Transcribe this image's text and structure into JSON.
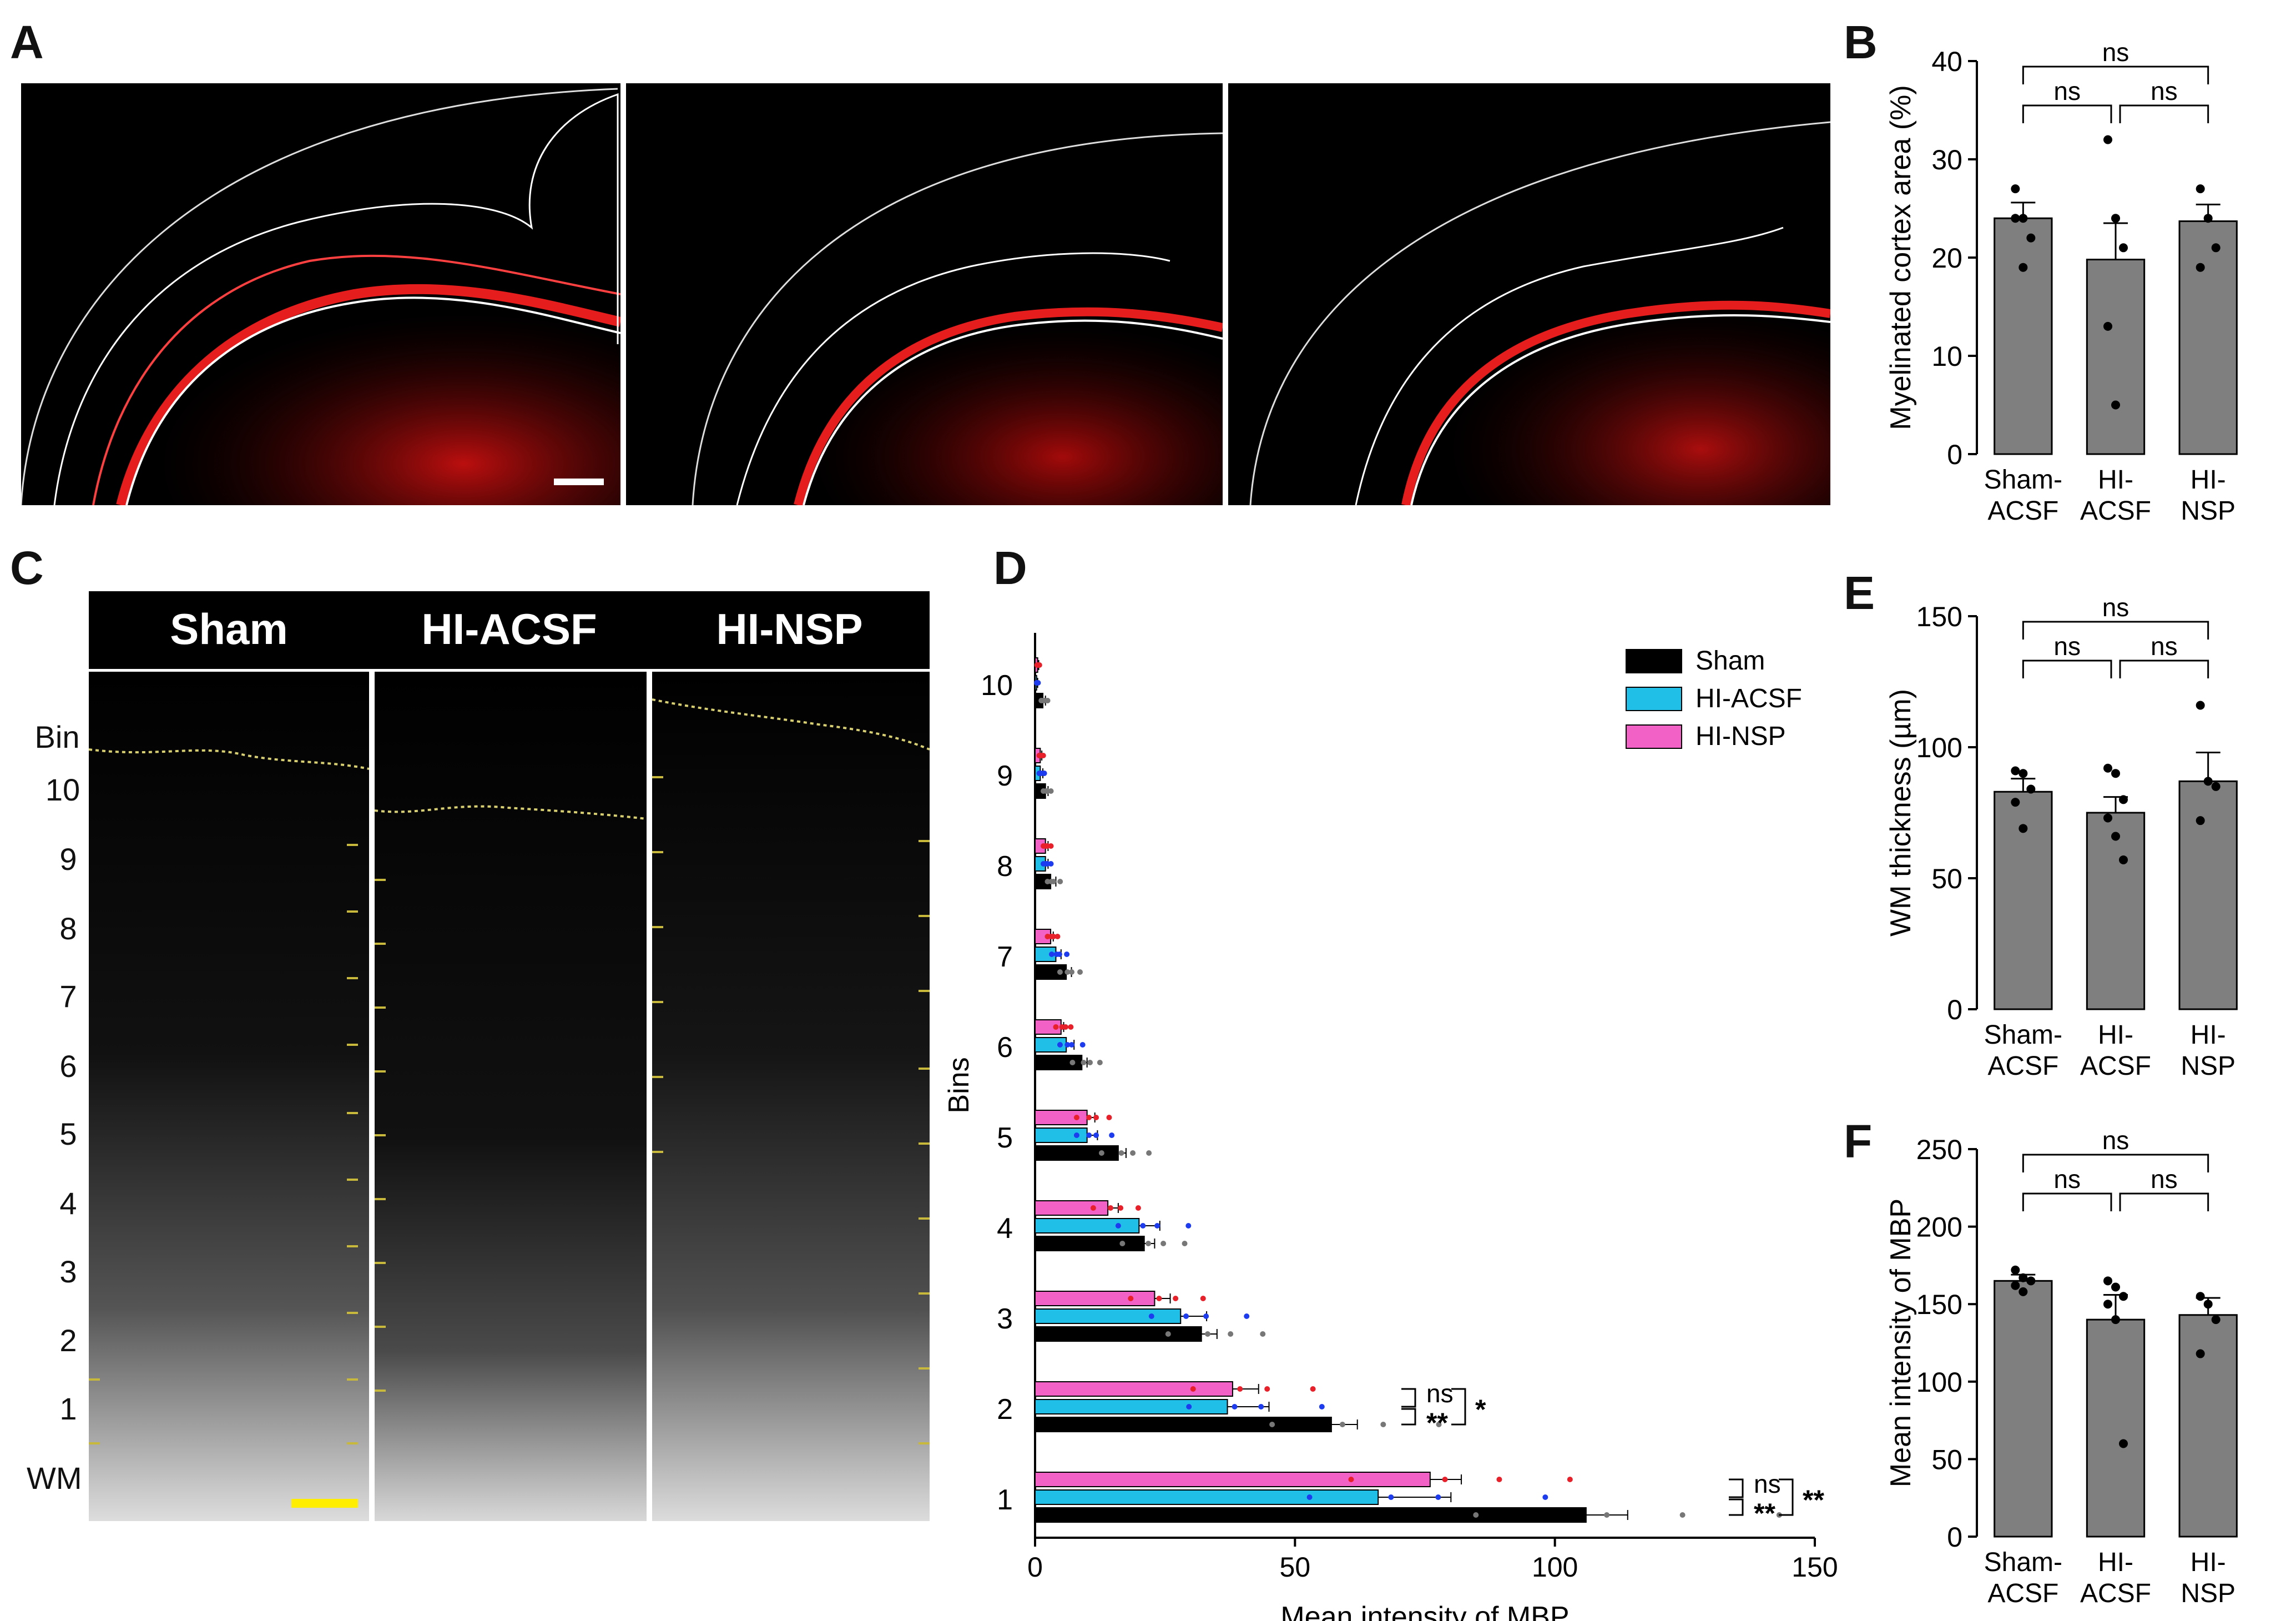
{
  "panels": {
    "A": {
      "letter": "A"
    },
    "B": {
      "letter": "B"
    },
    "C": {
      "letter": "C",
      "headers": [
        "Sham",
        "HI-ACSF",
        "HI-NSP"
      ],
      "bin_labels": [
        "Bin",
        "10",
        "9",
        "8",
        "7",
        "6",
        "5",
        "4",
        "3",
        "2",
        "1",
        "WM"
      ]
    },
    "D": {
      "letter": "D"
    },
    "E": {
      "letter": "E"
    },
    "F": {
      "letter": "F"
    }
  },
  "colors": {
    "bar_gray": "#7f7f7f",
    "sham": "#000000",
    "hi_acsf": "#1fbfe8",
    "hi_nsp": "#f261c6",
    "dot_red": "#e8202a",
    "dot_blue": "#1d3cf0",
    "micro_red": "#e01010"
  },
  "chart_data": [
    {
      "id": "B",
      "type": "bar",
      "categories": [
        "Sham-\nACSF",
        "HI-\nACSF",
        "HI-\nNSP"
      ],
      "category_lines": [
        [
          "Sham-",
          "ACSF"
        ],
        [
          "HI-",
          "ACSF"
        ],
        [
          "HI-",
          "NSP"
        ]
      ],
      "values": [
        24.0,
        19.8,
        23.7
      ],
      "errors": [
        1.6,
        3.7,
        1.7
      ],
      "points": [
        [
          27,
          24,
          22,
          24,
          19
        ],
        [
          32,
          24,
          21,
          13,
          5
        ],
        [
          27,
          24,
          21,
          19
        ]
      ],
      "ylabel": "Myelinated cortex area (%)",
      "ylim": [
        0,
        40
      ],
      "yticks": [
        0,
        10,
        20,
        30,
        40
      ],
      "significance": [
        {
          "a": 0,
          "b": 1,
          "label": "ns"
        },
        {
          "a": 1,
          "b": 2,
          "label": "ns"
        },
        {
          "a": 0,
          "b": 2,
          "label": "ns"
        }
      ]
    },
    {
      "id": "D",
      "type": "bar",
      "orientation": "horizontal",
      "categories": [
        "1",
        "2",
        "3",
        "4",
        "5",
        "6",
        "7",
        "8",
        "9",
        "10"
      ],
      "series": [
        {
          "name": "Sham",
          "values": [
            106,
            57,
            32,
            21,
            16,
            9,
            6,
            3,
            2,
            1.5
          ],
          "errors": [
            8,
            5,
            3,
            2,
            1.5,
            1,
            1,
            1,
            0.5,
            0.5
          ]
        },
        {
          "name": "HI-ACSF",
          "values": [
            66,
            37,
            28,
            20,
            10,
            6,
            4,
            2,
            1,
            0.3
          ],
          "errors": [
            14,
            8,
            5,
            4,
            2,
            1.5,
            1,
            0.5,
            0.5,
            0.2
          ]
        },
        {
          "name": "HI-NSP",
          "values": [
            76,
            38,
            23,
            14,
            10,
            5,
            3,
            2,
            1,
            0.5
          ],
          "errors": [
            6,
            5,
            3,
            2,
            1.5,
            0.5,
            0.5,
            0.5,
            0.3,
            0.2
          ]
        }
      ],
      "xlabel": "Mean intensity of MBP",
      "ylabel": "Bins",
      "xlim": [
        0,
        150
      ],
      "xticks": [
        0,
        50,
        100,
        150
      ],
      "significance": [
        {
          "bin": "2",
          "inner_top": "ns",
          "inner_bottom": "**",
          "outer": "*"
        },
        {
          "bin": "1",
          "inner_top": "ns",
          "inner_bottom": "**",
          "outer": "**"
        }
      ]
    },
    {
      "id": "E",
      "type": "bar",
      "categories": [
        "Sham-\nACSF",
        "HI-\nACSF",
        "HI-\nNSP"
      ],
      "category_lines": [
        [
          "Sham-",
          "ACSF"
        ],
        [
          "HI-",
          "ACSF"
        ],
        [
          "HI-",
          "NSP"
        ]
      ],
      "values": [
        83,
        75,
        87
      ],
      "errors": [
        5,
        6,
        11
      ],
      "points": [
        [
          91,
          90,
          84,
          79,
          69
        ],
        [
          92,
          90,
          80,
          73,
          66,
          57
        ],
        [
          116,
          87,
          85,
          72
        ]
      ],
      "ylabel": "WM thickness (µm)",
      "ylim": [
        0,
        150
      ],
      "yticks": [
        0,
        50,
        100,
        150
      ],
      "significance": [
        {
          "a": 0,
          "b": 1,
          "label": "ns"
        },
        {
          "a": 1,
          "b": 2,
          "label": "ns"
        },
        {
          "a": 0,
          "b": 2,
          "label": "ns"
        }
      ]
    },
    {
      "id": "F",
      "type": "bar",
      "categories": [
        "Sham-\nACSF",
        "HI-\nACSF",
        "HI-\nNSP"
      ],
      "category_lines": [
        [
          "Sham-",
          "ACSF"
        ],
        [
          "HI-",
          "ACSF"
        ],
        [
          "HI-",
          "NSP"
        ]
      ],
      "values": [
        165,
        140,
        143
      ],
      "errors": [
        4,
        16,
        11
      ],
      "points": [
        [
          172,
          167,
          165,
          162,
          158
        ],
        [
          165,
          161,
          155,
          150,
          140,
          60
        ],
        [
          155,
          150,
          140,
          118
        ]
      ],
      "ylabel": "Mean intensity of MBP",
      "ylim": [
        0,
        250
      ],
      "yticks": [
        0,
        50,
        100,
        150,
        200,
        250
      ],
      "significance": [
        {
          "a": 0,
          "b": 1,
          "label": "ns"
        },
        {
          "a": 1,
          "b": 2,
          "label": "ns"
        },
        {
          "a": 0,
          "b": 2,
          "label": "ns"
        }
      ]
    }
  ]
}
